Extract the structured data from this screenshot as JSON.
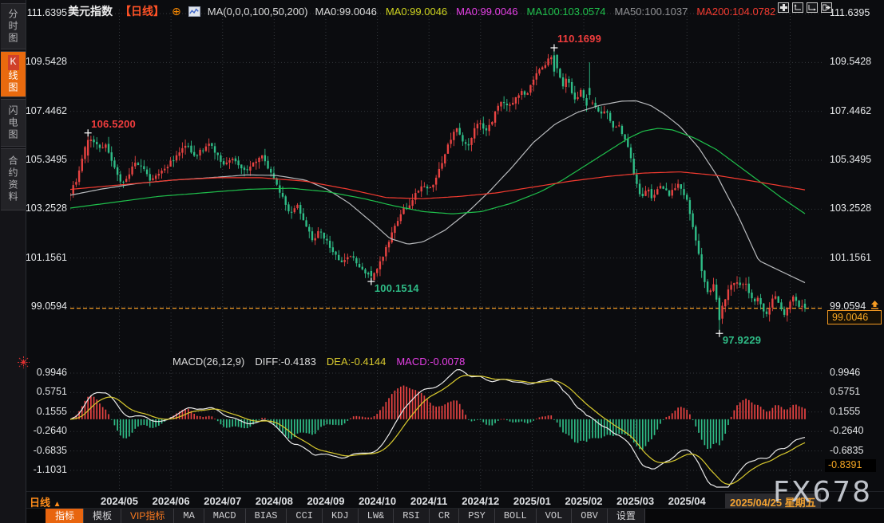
{
  "app": {
    "watermark": "FX678"
  },
  "sidebar": {
    "items": [
      {
        "label": "分时图",
        "active": false
      },
      {
        "label": "K线图",
        "active": true
      },
      {
        "label": "闪电图",
        "active": false
      },
      {
        "label": "合约资料",
        "active": false
      }
    ]
  },
  "header": {
    "title": "美元指数",
    "period_tag": "【日线】",
    "ma_settings": "MA(0,0,0,100,50,200)",
    "ma_values": [
      {
        "text": "MA0:99.0046",
        "color": "#dcdcdc"
      },
      {
        "text": "MA0:99.0046",
        "color": "#cfd41f"
      },
      {
        "text": "MA0:99.0046",
        "color": "#e43fe4"
      },
      {
        "text": "MA100:103.0574",
        "color": "#1fc04c"
      },
      {
        "text": "MA50:100.1037",
        "color": "#8f9093"
      },
      {
        "text": "MA200:104.0782",
        "color": "#f43b30"
      }
    ]
  },
  "main_chart": {
    "y_axis": [
      "111.6395",
      "109.5428",
      "107.4462",
      "105.3495",
      "103.2528",
      "101.1561",
      "99.0594"
    ],
    "current_price": "99.0046"
  },
  "macd_panel": {
    "header": {
      "name": "MACD(26,12,9)",
      "diff": "DIFF:-0.4183",
      "dea": "DEA:-0.4144",
      "macd": "MACD:-0.0078"
    },
    "y_axis": [
      "0.9946",
      "0.5751",
      "0.1555",
      "-0.2640",
      "-0.6835",
      "-1.1031"
    ],
    "current": "-0.8391"
  },
  "x_axis": {
    "period_label": "日线",
    "labels": [
      "2024/05",
      "2024/06",
      "2024/07",
      "2024/08",
      "2024/09",
      "2024/10",
      "2024/11",
      "2024/12",
      "2025/01",
      "2025/02",
      "2025/03",
      "2025/04"
    ],
    "date_badge": "2025/04/25 星期五"
  },
  "toolbar": {
    "items": [
      {
        "label": "指标",
        "style": "active"
      },
      {
        "label": "模板",
        "style": ""
      },
      {
        "label": "VIP指标",
        "style": "vip"
      },
      {
        "label": "MA",
        "style": "mono"
      },
      {
        "label": "MACD",
        "style": "mono"
      },
      {
        "label": "BIAS",
        "style": "mono"
      },
      {
        "label": "CCI",
        "style": "mono"
      },
      {
        "label": "KDJ",
        "style": "mono"
      },
      {
        "label": "LW&",
        "style": "mono"
      },
      {
        "label": "RSI",
        "style": "mono"
      },
      {
        "label": "CR",
        "style": "mono"
      },
      {
        "label": "PSY",
        "style": "mono"
      },
      {
        "label": "BOLL",
        "style": "mono"
      },
      {
        "label": "VOL",
        "style": "mono"
      },
      {
        "label": "OBV",
        "style": "mono"
      },
      {
        "label": "设置",
        "style": ""
      }
    ]
  },
  "chart_data": {
    "type": "candlestick",
    "title": "美元指数 日线 (US Dollar Index, daily)",
    "x_range": [
      "2024/04",
      "2025/04/25"
    ],
    "n_candles": 250,
    "seed": 1234,
    "ylim": [
      97.1,
      111.85
    ],
    "y_ticks": [
      111.6395,
      109.5428,
      107.4462,
      105.3495,
      103.2528,
      101.1561,
      99.0594
    ],
    "last_close": 99.0046,
    "close_anchors": [
      [
        0.0,
        104.0
      ],
      [
        0.008,
        104.4
      ],
      [
        0.016,
        105.5
      ],
      [
        0.024,
        106.25
      ],
      [
        0.032,
        106.05
      ],
      [
        0.04,
        105.85
      ],
      [
        0.048,
        106.1
      ],
      [
        0.056,
        105.3
      ],
      [
        0.064,
        104.65
      ],
      [
        0.072,
        104.35
      ],
      [
        0.08,
        104.8
      ],
      [
        0.09,
        105.25
      ],
      [
        0.1,
        104.9
      ],
      [
        0.11,
        104.5
      ],
      [
        0.12,
        104.8
      ],
      [
        0.13,
        105.1
      ],
      [
        0.141,
        105.35
      ],
      [
        0.15,
        105.75
      ],
      [
        0.16,
        105.95
      ],
      [
        0.17,
        105.55
      ],
      [
        0.18,
        105.8
      ],
      [
        0.19,
        106.0
      ],
      [
        0.2,
        105.6
      ],
      [
        0.21,
        105.1
      ],
      [
        0.22,
        105.45
      ],
      [
        0.23,
        105.0
      ],
      [
        0.24,
        104.8
      ],
      [
        0.25,
        105.3
      ],
      [
        0.26,
        105.55
      ],
      [
        0.27,
        105.0
      ],
      [
        0.28,
        104.4
      ],
      [
        0.29,
        103.7
      ],
      [
        0.3,
        103.0
      ],
      [
        0.31,
        103.4
      ],
      [
        0.32,
        102.6
      ],
      [
        0.33,
        101.9
      ],
      [
        0.34,
        102.35
      ],
      [
        0.35,
        101.8
      ],
      [
        0.36,
        101.3
      ],
      [
        0.37,
        100.95
      ],
      [
        0.38,
        101.35
      ],
      [
        0.39,
        100.9
      ],
      [
        0.398,
        100.6
      ],
      [
        0.41,
        100.3
      ],
      [
        0.42,
        100.9
      ],
      [
        0.43,
        101.6
      ],
      [
        0.44,
        102.4
      ],
      [
        0.45,
        103.1
      ],
      [
        0.46,
        103.4
      ],
      [
        0.47,
        103.9
      ],
      [
        0.48,
        104.3
      ],
      [
        0.49,
        104.1
      ],
      [
        0.495,
        104.4
      ],
      [
        0.505,
        105.2
      ],
      [
        0.515,
        106.1
      ],
      [
        0.525,
        106.7
      ],
      [
        0.532,
        106.3
      ],
      [
        0.54,
        105.9
      ],
      [
        0.548,
        106.5
      ],
      [
        0.556,
        107.0
      ],
      [
        0.564,
        106.6
      ],
      [
        0.572,
        106.9
      ],
      [
        0.58,
        107.5
      ],
      [
        0.588,
        107.9
      ],
      [
        0.596,
        107.6
      ],
      [
        0.604,
        107.9
      ],
      [
        0.612,
        108.3
      ],
      [
        0.62,
        108.1
      ],
      [
        0.628,
        108.7
      ],
      [
        0.636,
        109.1
      ],
      [
        0.645,
        109.4
      ],
      [
        0.652,
        109.7
      ],
      [
        0.658,
        109.9
      ],
      [
        0.664,
        109.1
      ],
      [
        0.67,
        108.5
      ],
      [
        0.676,
        109.0
      ],
      [
        0.682,
        108.3
      ],
      [
        0.688,
        107.8
      ],
      [
        0.694,
        108.4
      ],
      [
        0.698,
        108.0
      ],
      [
        0.704,
        107.7
      ],
      [
        0.71,
        107.95
      ],
      [
        0.716,
        107.6
      ],
      [
        0.722,
        107.3
      ],
      [
        0.728,
        107.55
      ],
      [
        0.734,
        107.1
      ],
      [
        0.74,
        106.7
      ],
      [
        0.746,
        106.9
      ],
      [
        0.752,
        106.4
      ],
      [
        0.758,
        106.0
      ],
      [
        0.764,
        105.3
      ],
      [
        0.769,
        104.5
      ],
      [
        0.774,
        104.0
      ],
      [
        0.78,
        103.8
      ],
      [
        0.786,
        104.15
      ],
      [
        0.792,
        103.75
      ],
      [
        0.798,
        104.05
      ],
      [
        0.804,
        104.3
      ],
      [
        0.81,
        104.05
      ],
      [
        0.816,
        103.85
      ],
      [
        0.822,
        104.15
      ],
      [
        0.828,
        104.3
      ],
      [
        0.834,
        103.95
      ],
      [
        0.84,
        103.6
      ],
      [
        0.846,
        102.7
      ],
      [
        0.852,
        101.8
      ],
      [
        0.858,
        100.9
      ],
      [
        0.864,
        100.0
      ],
      [
        0.87,
        99.6
      ],
      [
        0.876,
        100.1
      ],
      [
        0.88,
        99.3
      ],
      [
        0.884,
        98.55
      ],
      [
        0.888,
        99.1
      ],
      [
        0.894,
        99.7
      ],
      [
        0.9,
        100.0
      ],
      [
        0.906,
        100.25
      ],
      [
        0.912,
        99.9
      ],
      [
        0.918,
        100.15
      ],
      [
        0.924,
        99.6
      ],
      [
        0.93,
        99.2
      ],
      [
        0.936,
        99.55
      ],
      [
        0.942,
        99.0
      ],
      [
        0.948,
        98.7
      ],
      [
        0.954,
        99.3
      ],
      [
        0.96,
        99.55
      ],
      [
        0.966,
        99.1
      ],
      [
        0.972,
        98.8
      ],
      [
        0.978,
        99.2
      ],
      [
        0.984,
        99.45
      ],
      [
        0.99,
        99.15
      ],
      [
        1.0,
        99.0046
      ]
    ],
    "key_points": [
      {
        "name": "high-2024-04",
        "index": 6,
        "price": 106.52,
        "label": "106.5200",
        "type": "high",
        "ohlc": [
          105.55,
          106.22,
          106.52,
          105.25
        ]
      },
      {
        "name": "low-2024-09",
        "index": 102,
        "price": 100.1514,
        "label": "100.1514",
        "type": "low",
        "ohlc": [
          100.6,
          100.38,
          100.8,
          100.1514
        ]
      },
      {
        "name": "high-2025-01",
        "index": 164,
        "price": 110.1699,
        "label": "110.1699",
        "type": "high",
        "ohlc": [
          109.85,
          109.15,
          110.1699,
          108.95
        ]
      },
      {
        "name": "spike-2025-02",
        "index": 176,
        "price": 109.55,
        "label": "",
        "type": "wick",
        "ohlc": [
          108.45,
          108.15,
          109.55,
          107.95
        ]
      },
      {
        "name": "low-2025-04",
        "index": 220,
        "price": 97.9229,
        "label": "97.9229",
        "type": "low",
        "ohlc": [
          99.45,
          98.5,
          99.55,
          97.9229
        ]
      },
      {
        "name": "last-candle",
        "index": 249,
        "price": 99.0046,
        "label": "",
        "type": "last",
        "ohlc": [
          99.2,
          99.0046,
          99.4,
          98.85
        ]
      }
    ],
    "moving_averages": [
      {
        "name": "MA50",
        "color": "#b9bbbe",
        "anchors": [
          [
            0,
            103.85
          ],
          [
            0.04,
            104.1
          ],
          [
            0.09,
            104.35
          ],
          [
            0.14,
            104.5
          ],
          [
            0.19,
            104.6
          ],
          [
            0.24,
            104.72
          ],
          [
            0.28,
            104.7
          ],
          [
            0.32,
            104.5
          ],
          [
            0.35,
            104.1
          ],
          [
            0.38,
            103.5
          ],
          [
            0.41,
            102.7
          ],
          [
            0.435,
            102.0
          ],
          [
            0.46,
            101.75
          ],
          [
            0.48,
            101.85
          ],
          [
            0.51,
            102.35
          ],
          [
            0.54,
            103.1
          ],
          [
            0.57,
            104.0
          ],
          [
            0.6,
            105.0
          ],
          [
            0.63,
            106.1
          ],
          [
            0.66,
            106.9
          ],
          [
            0.69,
            107.4
          ],
          [
            0.72,
            107.7
          ],
          [
            0.75,
            107.88
          ],
          [
            0.77,
            107.9
          ],
          [
            0.79,
            107.7
          ],
          [
            0.81,
            107.3
          ],
          [
            0.83,
            106.8
          ],
          [
            0.855,
            105.9
          ],
          [
            0.88,
            104.7
          ],
          [
            0.91,
            102.9
          ],
          [
            0.937,
            101.05
          ],
          [
            0.96,
            100.7
          ],
          [
            0.98,
            100.4
          ],
          [
            1,
            100.1
          ]
        ]
      },
      {
        "name": "MA100",
        "color": "#1fc04c",
        "anchors": [
          [
            0,
            103.3
          ],
          [
            0.06,
            103.55
          ],
          [
            0.12,
            103.8
          ],
          [
            0.18,
            103.95
          ],
          [
            0.24,
            104.1
          ],
          [
            0.3,
            104.15
          ],
          [
            0.35,
            104.0
          ],
          [
            0.4,
            103.7
          ],
          [
            0.44,
            103.4
          ],
          [
            0.48,
            103.15
          ],
          [
            0.52,
            103.05
          ],
          [
            0.56,
            103.15
          ],
          [
            0.6,
            103.5
          ],
          [
            0.64,
            104.0
          ],
          [
            0.67,
            104.5
          ],
          [
            0.7,
            105.1
          ],
          [
            0.73,
            105.7
          ],
          [
            0.76,
            106.3
          ],
          [
            0.78,
            106.6
          ],
          [
            0.8,
            106.72
          ],
          [
            0.82,
            106.65
          ],
          [
            0.85,
            106.3
          ],
          [
            0.88,
            105.8
          ],
          [
            0.91,
            105.1
          ],
          [
            0.94,
            104.4
          ],
          [
            0.97,
            103.7
          ],
          [
            1,
            103.06
          ]
        ]
      },
      {
        "name": "MA200",
        "color": "#f43b30",
        "anchors": [
          [
            0,
            104.1
          ],
          [
            0.07,
            104.3
          ],
          [
            0.14,
            104.5
          ],
          [
            0.2,
            104.6
          ],
          [
            0.26,
            104.6
          ],
          [
            0.32,
            104.45
          ],
          [
            0.38,
            104.1
          ],
          [
            0.43,
            103.75
          ],
          [
            0.48,
            103.7
          ],
          [
            0.53,
            103.8
          ],
          [
            0.58,
            103.95
          ],
          [
            0.63,
            104.2
          ],
          [
            0.68,
            104.45
          ],
          [
            0.73,
            104.65
          ],
          [
            0.78,
            104.8
          ],
          [
            0.83,
            104.85
          ],
          [
            0.88,
            104.7
          ],
          [
            0.93,
            104.45
          ],
          [
            1,
            104.08
          ]
        ]
      }
    ],
    "macd": {
      "params": [
        26,
        12,
        9
      ],
      "diff": -0.4183,
      "dea": -0.4144,
      "macd": -0.0078,
      "current_axis_value": -0.8391,
      "y_ticks": [
        0.9946,
        0.5751,
        0.1555,
        -0.264,
        -0.6835,
        -1.1031
      ],
      "colors": {
        "diff": "#e9e9e9",
        "dea": "#d9ca2e",
        "up": "#e84342",
        "down": "#2fbd87"
      }
    },
    "colors": {
      "up": "#e84342",
      "down": "#2fbd87",
      "last_price_line": "#f59b22",
      "anno_high": "#f23d3d",
      "anno_low": "#2fbd87",
      "grid": "#34373c"
    }
  }
}
